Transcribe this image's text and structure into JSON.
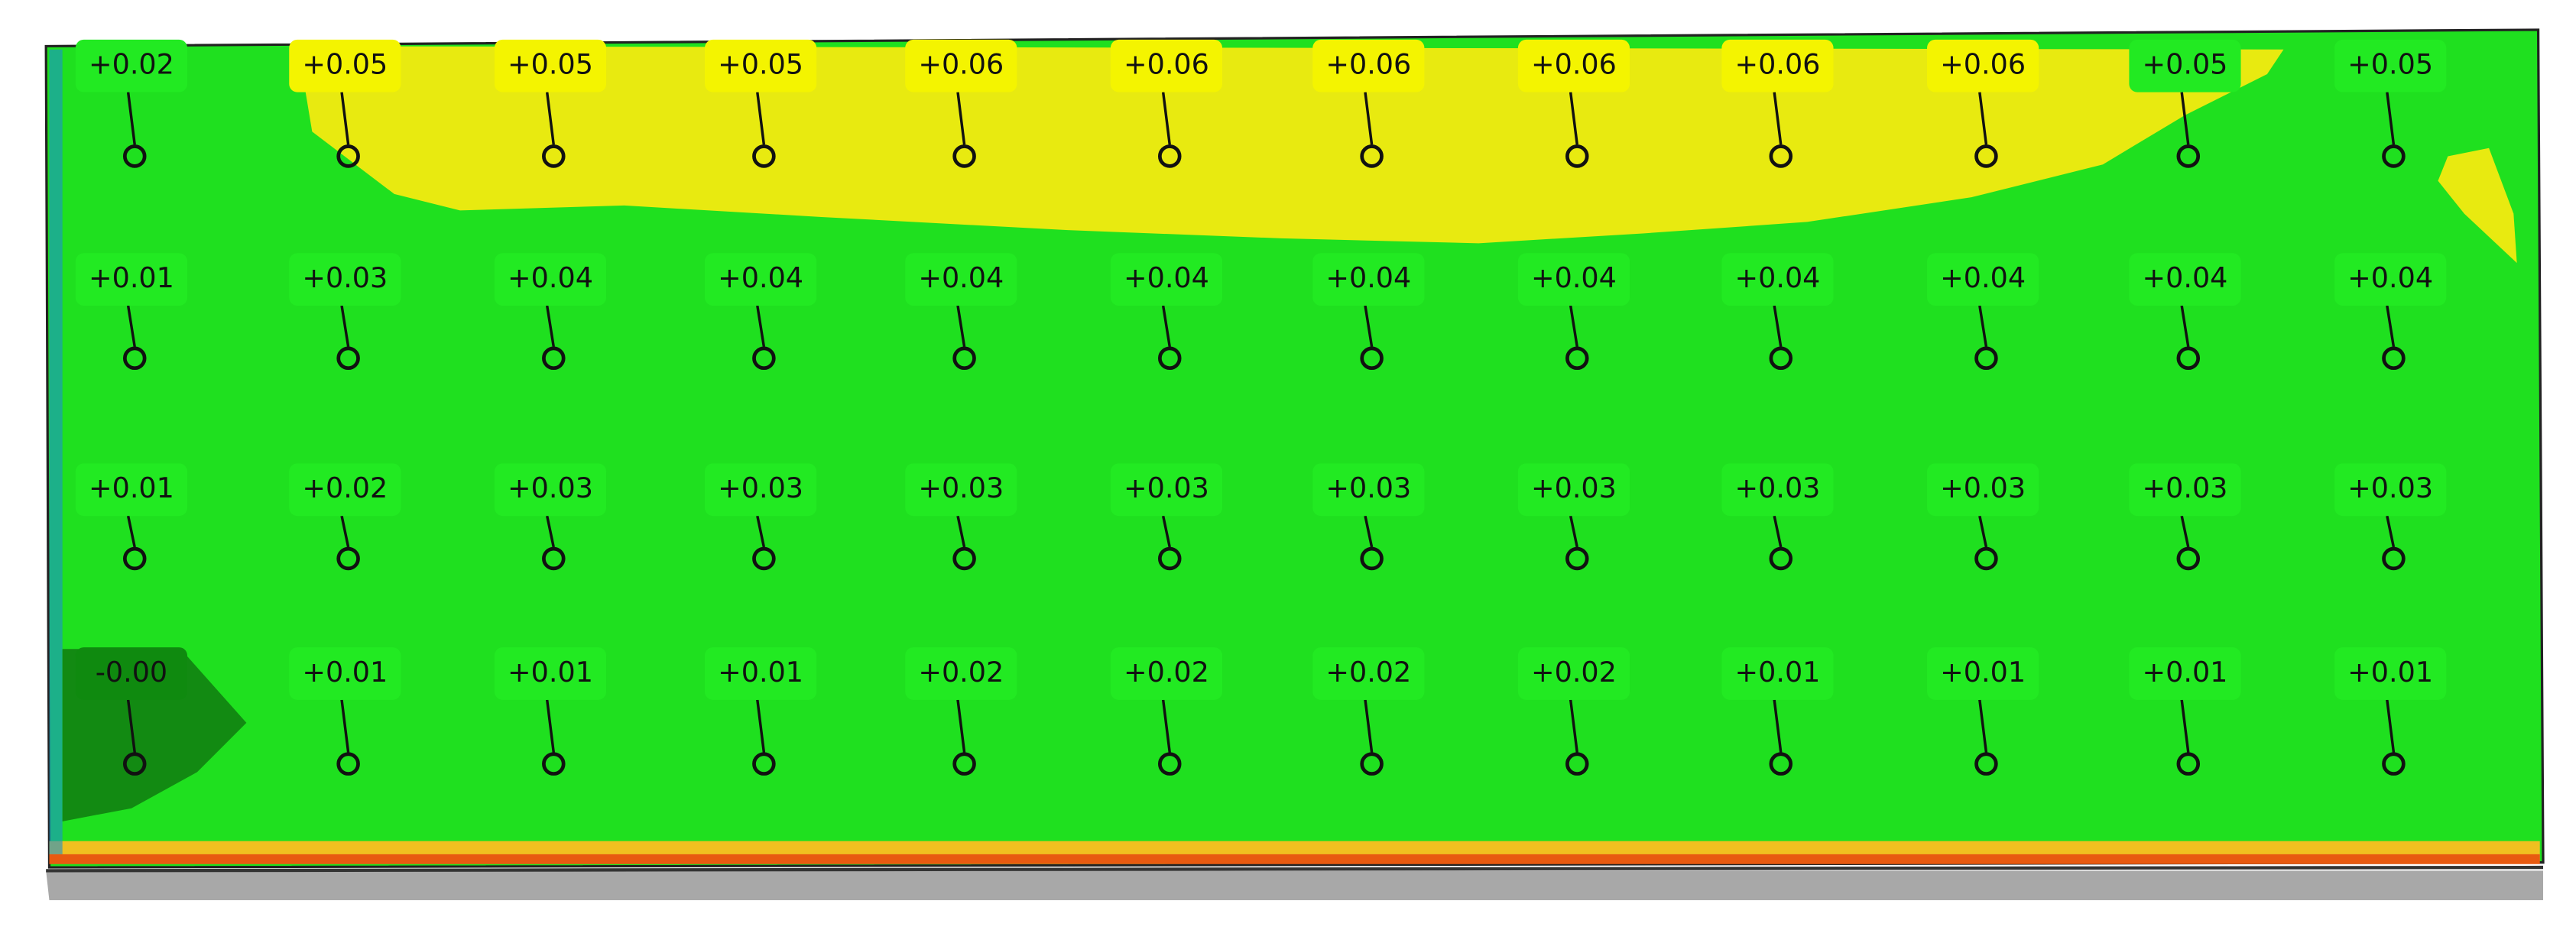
{
  "grid": {
    "rows": [
      [
        "+0.02",
        "+0.05",
        "+0.05",
        "+0.05",
        "+0.06",
        "+0.06",
        "+0.06",
        "+0.06",
        "+0.06",
        "+0.06",
        "+0.05",
        "+0.05"
      ],
      [
        "+0.01",
        "+0.03",
        "+0.04",
        "+0.04",
        "+0.04",
        "+0.04",
        "+0.04",
        "+0.04",
        "+0.04",
        "+0.04",
        "+0.04",
        "+0.04"
      ],
      [
        "+0.01",
        "+0.02",
        "+0.03",
        "+0.03",
        "+0.03",
        "+0.03",
        "+0.03",
        "+0.03",
        "+0.03",
        "+0.03",
        "+0.03",
        "+0.03"
      ],
      [
        "-0.00",
        "+0.01",
        "+0.01",
        "+0.01",
        "+0.02",
        "+0.02",
        "+0.02",
        "+0.02",
        "+0.01",
        "+0.01",
        "+0.01",
        "+0.01"
      ]
    ]
  }
}
